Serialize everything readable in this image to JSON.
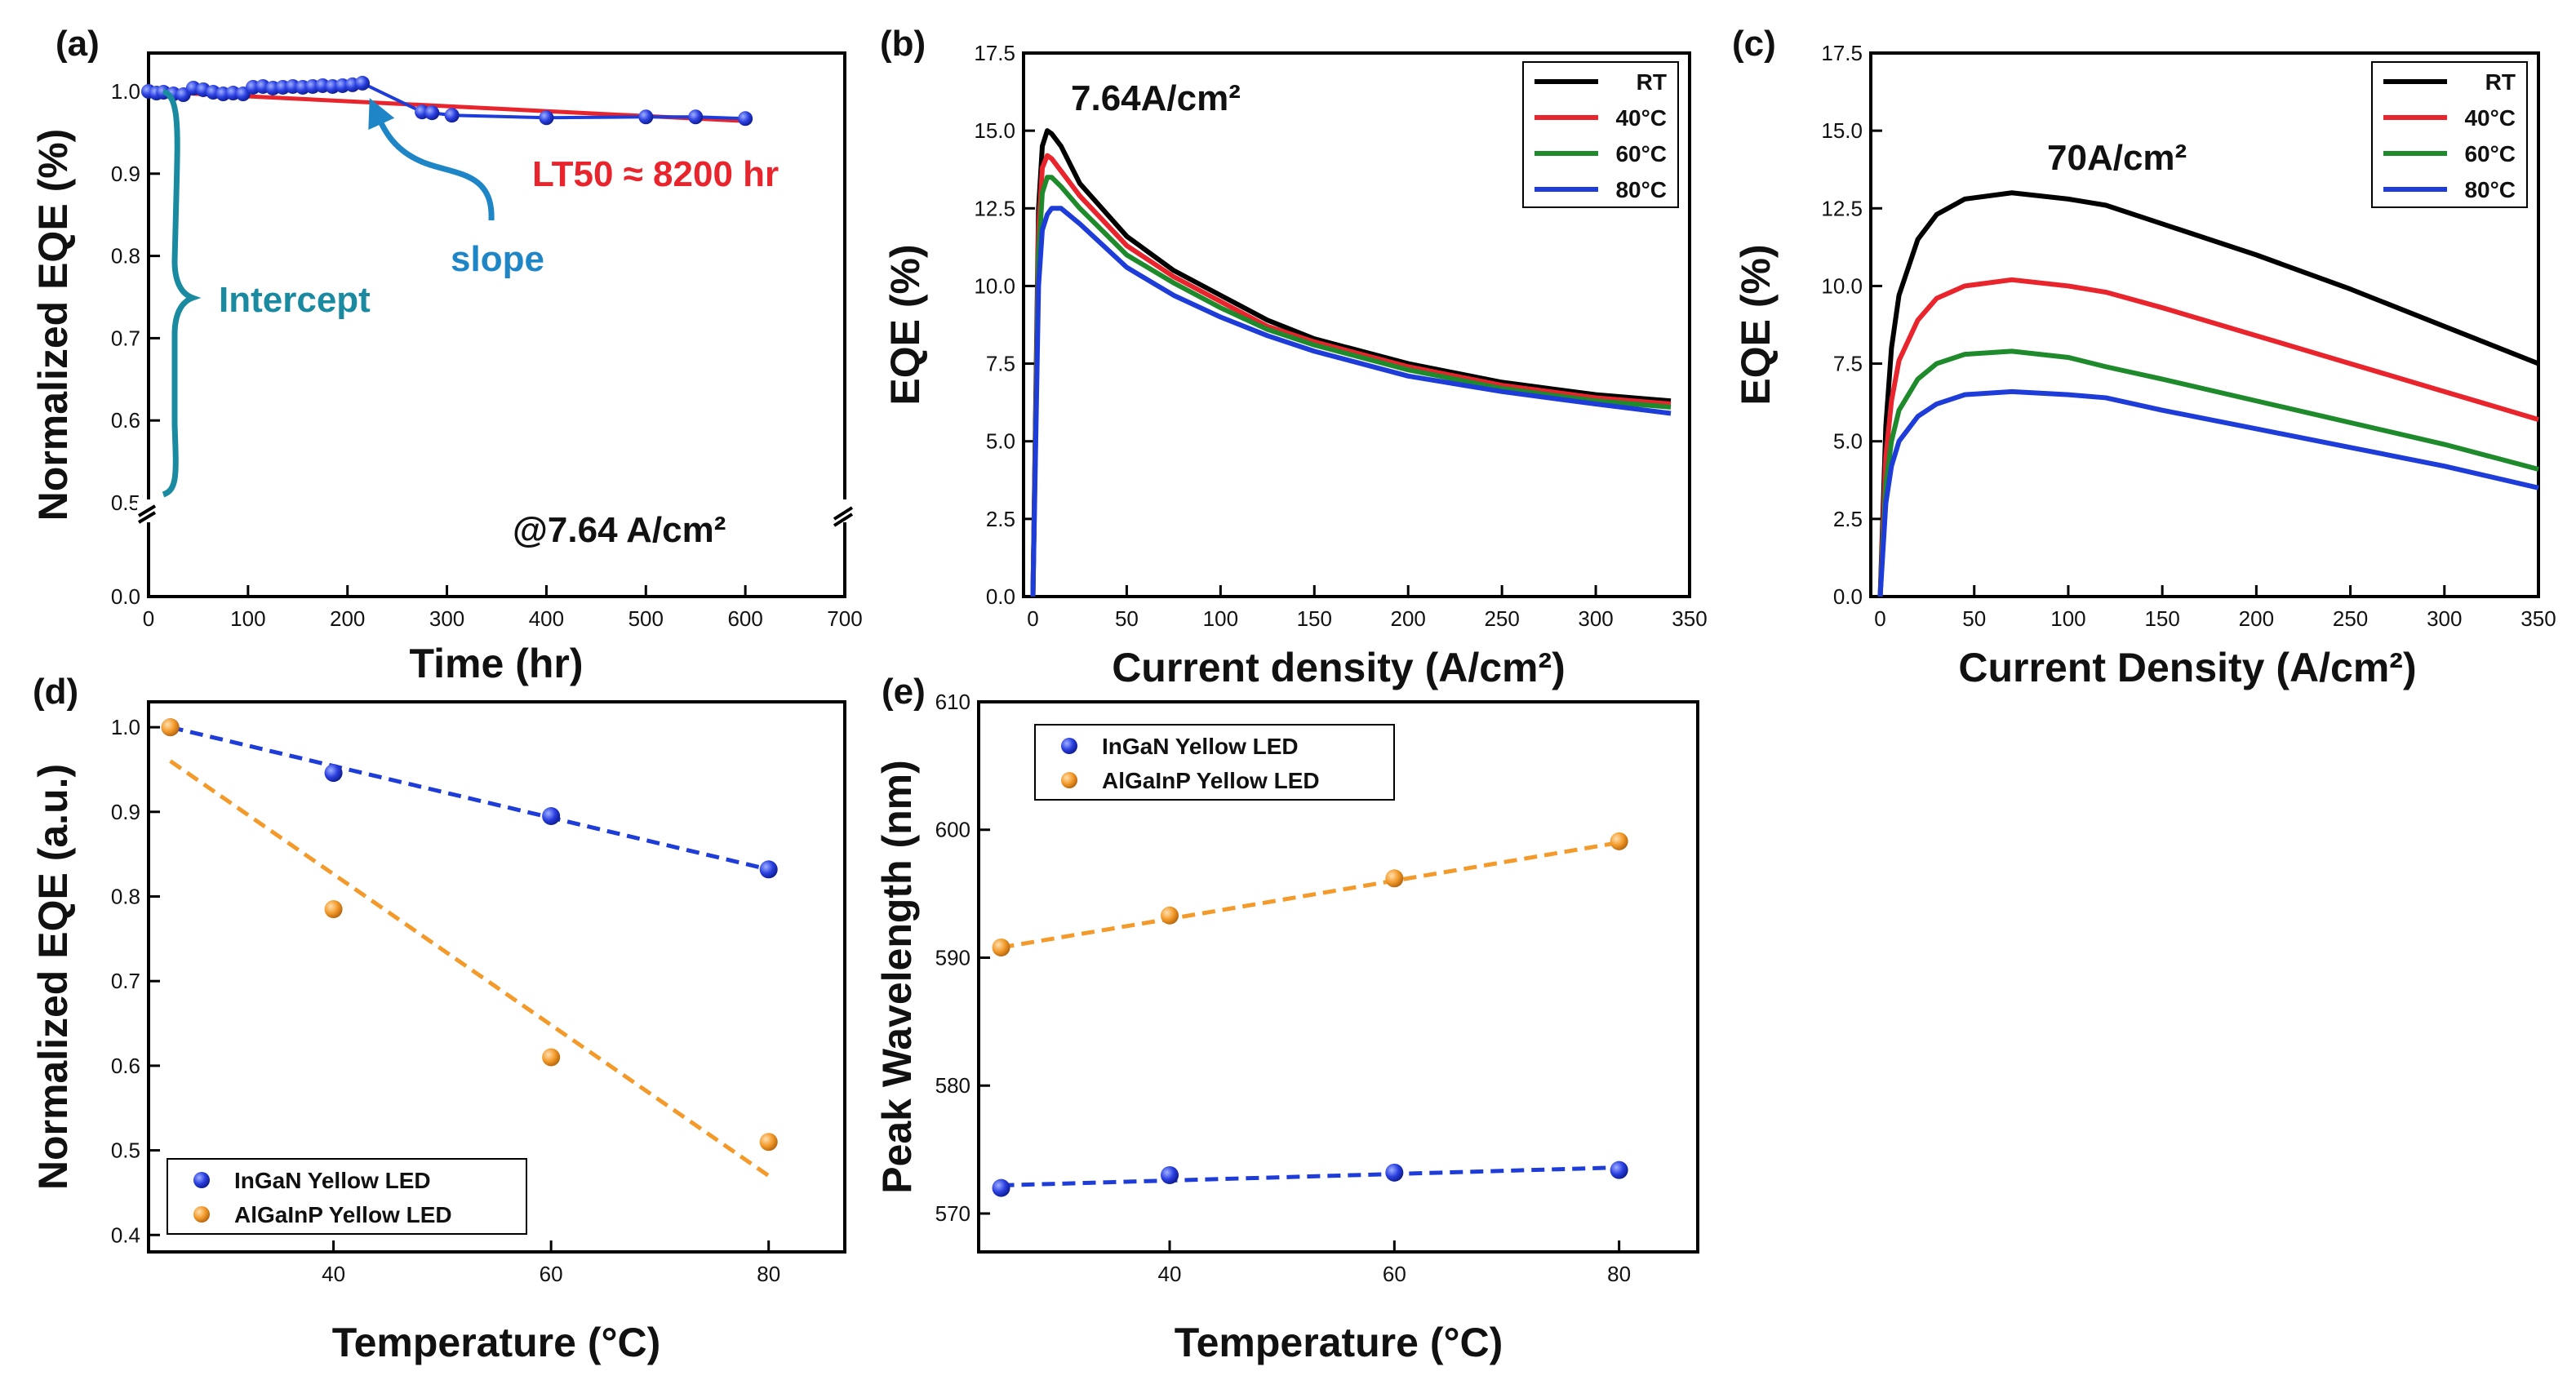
{
  "figure": {
    "panels": [
      "(a)",
      "(b)",
      "(c)",
      "(d)",
      "(e)"
    ]
  },
  "chart_data": [
    {
      "id": "a",
      "type": "scatter",
      "panel_label": "(a)",
      "xlabel": "Time (hr)",
      "ylabel": "Normalized EQE (%)",
      "xlim": [
        0,
        700
      ],
      "ylim": [
        0,
        1.05
      ],
      "xticks": [
        "0",
        "100",
        "200",
        "300",
        "400",
        "500",
        "600",
        "700"
      ],
      "yticks": [
        "0.0",
        "0.5",
        "0.6",
        "0.7",
        "0.8",
        "0.9",
        "1.0"
      ],
      "axis_break": "between 0.0 and 0.5",
      "series": [
        {
          "name": "Normalized EQE",
          "color": "#1e3cd7",
          "x": [
            0,
            8,
            15,
            25,
            35,
            45,
            55,
            65,
            75,
            85,
            95,
            105,
            115,
            125,
            135,
            145,
            155,
            165,
            175,
            185,
            195,
            205,
            215,
            275,
            285,
            305,
            400,
            500,
            550,
            600
          ],
          "y": [
            1.0,
            0.998,
            0.999,
            0.997,
            0.996,
            1.004,
            1.002,
            0.999,
            0.997,
            0.998,
            0.997,
            1.005,
            1.006,
            1.004,
            1.005,
            1.006,
            1.005,
            1.006,
            1.007,
            1.006,
            1.007,
            1.008,
            1.01,
            0.975,
            0.974,
            0.971,
            0.968,
            0.969,
            0.969,
            0.967
          ]
        },
        {
          "name": "Linear fit",
          "color": "#e8242c",
          "x": [
            0,
            600
          ],
          "y": [
            1.0,
            0.964
          ]
        }
      ],
      "annotations": {
        "lt50": "LT50 ≈ 8200 hr",
        "slope": "slope",
        "intercept": "Intercept",
        "condition": "@7.64 A/cm²"
      }
    },
    {
      "id": "b",
      "type": "line",
      "panel_label": "(b)",
      "xlabel": "Current density (A/cm²)",
      "ylabel": "EQE (%)",
      "xlim": [
        -5,
        350
      ],
      "ylim": [
        0,
        17.5
      ],
      "xticks": [
        "0",
        "50",
        "100",
        "150",
        "200",
        "250",
        "300",
        "350"
      ],
      "yticks": [
        "0.0",
        "2.5",
        "5.0",
        "7.5",
        "10.0",
        "12.5",
        "15.0",
        "17.5"
      ],
      "annotation": "7.64A/cm²",
      "series": [
        {
          "name": "RT",
          "color": "#000000",
          "x": [
            0,
            3,
            5,
            7.64,
            10,
            15,
            25,
            50,
            75,
            100,
            125,
            150,
            200,
            250,
            300,
            340
          ],
          "y": [
            0,
            12.5,
            14.5,
            15.0,
            14.9,
            14.5,
            13.3,
            11.6,
            10.5,
            9.7,
            8.9,
            8.3,
            7.5,
            6.9,
            6.5,
            6.3
          ]
        },
        {
          "name": "40°C",
          "color": "#e8242c",
          "x": [
            0,
            3,
            5,
            7.64,
            10,
            15,
            25,
            50,
            75,
            100,
            125,
            150,
            200,
            250,
            300,
            340
          ],
          "y": [
            0,
            11.8,
            13.8,
            14.2,
            14.1,
            13.7,
            12.9,
            11.3,
            10.3,
            9.5,
            8.7,
            8.2,
            7.4,
            6.8,
            6.4,
            6.2
          ]
        },
        {
          "name": "60°C",
          "color": "#1e8a2c",
          "x": [
            0,
            3,
            5,
            7.64,
            10,
            15,
            25,
            50,
            75,
            100,
            125,
            150,
            200,
            250,
            300,
            340
          ],
          "y": [
            0,
            11.0,
            13.0,
            13.5,
            13.5,
            13.2,
            12.5,
            11.0,
            10.1,
            9.3,
            8.6,
            8.1,
            7.3,
            6.7,
            6.3,
            6.1
          ]
        },
        {
          "name": "80°C",
          "color": "#1e3cd7",
          "x": [
            0,
            3,
            5,
            7.64,
            10,
            15,
            25,
            50,
            75,
            100,
            125,
            150,
            200,
            250,
            300,
            340
          ],
          "y": [
            0,
            10.0,
            11.8,
            12.3,
            12.5,
            12.5,
            12.0,
            10.6,
            9.7,
            9.0,
            8.4,
            7.9,
            7.1,
            6.6,
            6.2,
            5.9
          ]
        }
      ],
      "legend": [
        "RT",
        "40°C",
        "60°C",
        "80°C"
      ],
      "legend_position": "top-right"
    },
    {
      "id": "c",
      "type": "line",
      "panel_label": "(c)",
      "xlabel": "Current Density (A/cm²)",
      "ylabel": "EQE (%)",
      "xlim": [
        -5,
        350
      ],
      "ylim": [
        0,
        17.5
      ],
      "xticks": [
        "0",
        "50",
        "100",
        "150",
        "200",
        "250",
        "300",
        "350"
      ],
      "yticks": [
        "0.0",
        "2.5",
        "5.0",
        "7.5",
        "10.0",
        "12.5",
        "15.0",
        "17.5"
      ],
      "annotation": "70A/cm²",
      "series": [
        {
          "name": "RT",
          "color": "#000000",
          "x": [
            0,
            3,
            6,
            10,
            20,
            30,
            45,
            70,
            100,
            120,
            150,
            200,
            250,
            300,
            350
          ],
          "y": [
            0,
            5.5,
            8.0,
            9.7,
            11.5,
            12.3,
            12.8,
            13.0,
            12.8,
            12.6,
            12.0,
            11.0,
            9.9,
            8.7,
            7.5
          ]
        },
        {
          "name": "40°C",
          "color": "#e8242c",
          "x": [
            0,
            3,
            6,
            10,
            20,
            30,
            45,
            70,
            100,
            120,
            150,
            200,
            250,
            300,
            350
          ],
          "y": [
            0,
            4.5,
            6.3,
            7.6,
            8.9,
            9.6,
            10.0,
            10.2,
            10.0,
            9.8,
            9.3,
            8.4,
            7.5,
            6.6,
            5.7
          ]
        },
        {
          "name": "60°C",
          "color": "#1e8a2c",
          "x": [
            0,
            3,
            6,
            10,
            20,
            30,
            45,
            70,
            100,
            120,
            150,
            200,
            250,
            300,
            350
          ],
          "y": [
            0,
            3.6,
            5.0,
            6.0,
            7.0,
            7.5,
            7.8,
            7.9,
            7.7,
            7.4,
            7.0,
            6.3,
            5.6,
            4.9,
            4.1
          ]
        },
        {
          "name": "80°C",
          "color": "#1e3cd7",
          "x": [
            0,
            3,
            6,
            10,
            20,
            30,
            45,
            70,
            100,
            120,
            150,
            200,
            250,
            300,
            350
          ],
          "y": [
            0,
            3.0,
            4.2,
            5.0,
            5.8,
            6.2,
            6.5,
            6.6,
            6.5,
            6.4,
            6.0,
            5.4,
            4.8,
            4.2,
            3.5
          ]
        }
      ],
      "legend": [
        "RT",
        "40°C",
        "60°C",
        "80°C"
      ],
      "legend_position": "top-right"
    },
    {
      "id": "d",
      "type": "scatter",
      "panel_label": "(d)",
      "xlabel": "Temperature (°C)",
      "ylabel": "Normalized EQE (a.u.)",
      "xlim": [
        23,
        87
      ],
      "ylim": [
        0.38,
        1.03
      ],
      "xticks": [
        "40",
        "60",
        "80"
      ],
      "yticks": [
        "0.4",
        "0.5",
        "0.6",
        "0.7",
        "0.8",
        "0.9",
        "1.0"
      ],
      "series": [
        {
          "name": "InGaN Yellow LED",
          "color": "#1e3cd7",
          "x": [
            25,
            40,
            60,
            80
          ],
          "y": [
            1.0,
            0.946,
            0.895,
            0.832
          ],
          "fit": {
            "x": [
              25,
              80
            ],
            "y": [
              1.0,
              0.832
            ]
          }
        },
        {
          "name": "AlGaInP Yellow LED",
          "color": "#f39a2a",
          "x": [
            25,
            40,
            60,
            80
          ],
          "y": [
            1.0,
            0.785,
            0.61,
            0.51
          ],
          "fit": {
            "x": [
              25,
              80
            ],
            "y": [
              0.96,
              0.47
            ]
          }
        }
      ],
      "legend": [
        "InGaN Yellow LED",
        "AlGaInP Yellow LED"
      ],
      "legend_position": "bottom-left"
    },
    {
      "id": "e",
      "type": "scatter",
      "panel_label": "(e)",
      "xlabel": "Temperature (°C)",
      "ylabel": "Peak Wavelength (nm)",
      "xlim": [
        23,
        87
      ],
      "ylim": [
        567,
        610
      ],
      "xticks": [
        "40",
        "60",
        "80"
      ],
      "yticks": [
        "570",
        "580",
        "590",
        "600",
        "610"
      ],
      "series": [
        {
          "name": "InGaN Yellow LED",
          "color": "#1e3cd7",
          "x": [
            25,
            40,
            60,
            80
          ],
          "y": [
            572.0,
            573.0,
            573.2,
            573.4
          ],
          "fit": {
            "x": [
              25,
              80
            ],
            "y": [
              572.2,
              573.6
            ]
          }
        },
        {
          "name": "AlGaInP Yellow LED",
          "color": "#f39a2a",
          "x": [
            25,
            40,
            60,
            80
          ],
          "y": [
            590.8,
            593.3,
            596.2,
            599.1
          ],
          "fit": {
            "x": [
              25,
              80
            ],
            "y": [
              590.8,
              599.0
            ]
          }
        }
      ],
      "legend": [
        "InGaN Yellow LED",
        "AlGaInP Yellow LED"
      ],
      "legend_position": "top-left"
    }
  ]
}
